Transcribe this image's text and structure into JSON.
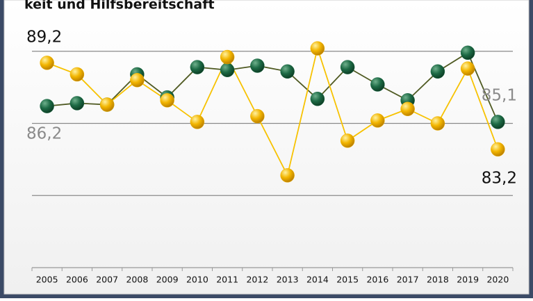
{
  "chart_data": {
    "type": "line",
    "title": "keit und Hilfsbereitschaft",
    "categories": [
      "2005",
      "2006",
      "2007",
      "2008",
      "2009",
      "2010",
      "2011",
      "2012",
      "2013",
      "2014",
      "2015",
      "2016",
      "2017",
      "2018",
      "2019",
      "2020"
    ],
    "series": [
      {
        "color": "#1d6a45",
        "line_color": "#4f5a22",
        "values": [
          86.2,
          86.4,
          86.3,
          88.4,
          86.8,
          88.9,
          88.7,
          89.0,
          88.6,
          86.7,
          88.9,
          87.7,
          86.6,
          88.6,
          89.9,
          85.1
        ]
      },
      {
        "color": "#f2b500",
        "line_color": "#f7c200",
        "values": [
          89.2,
          88.4,
          86.3,
          88.0,
          86.6,
          85.1,
          89.6,
          85.5,
          81.4,
          90.2,
          83.8,
          85.2,
          86.0,
          85.0,
          88.8,
          83.2
        ]
      }
    ],
    "annotations": [
      "89,2",
      "86,2",
      "85,1",
      "83,2"
    ],
    "ylim": [
      75,
      91
    ],
    "yticks": [
      75,
      80,
      85,
      90
    ],
    "grid": true
  }
}
